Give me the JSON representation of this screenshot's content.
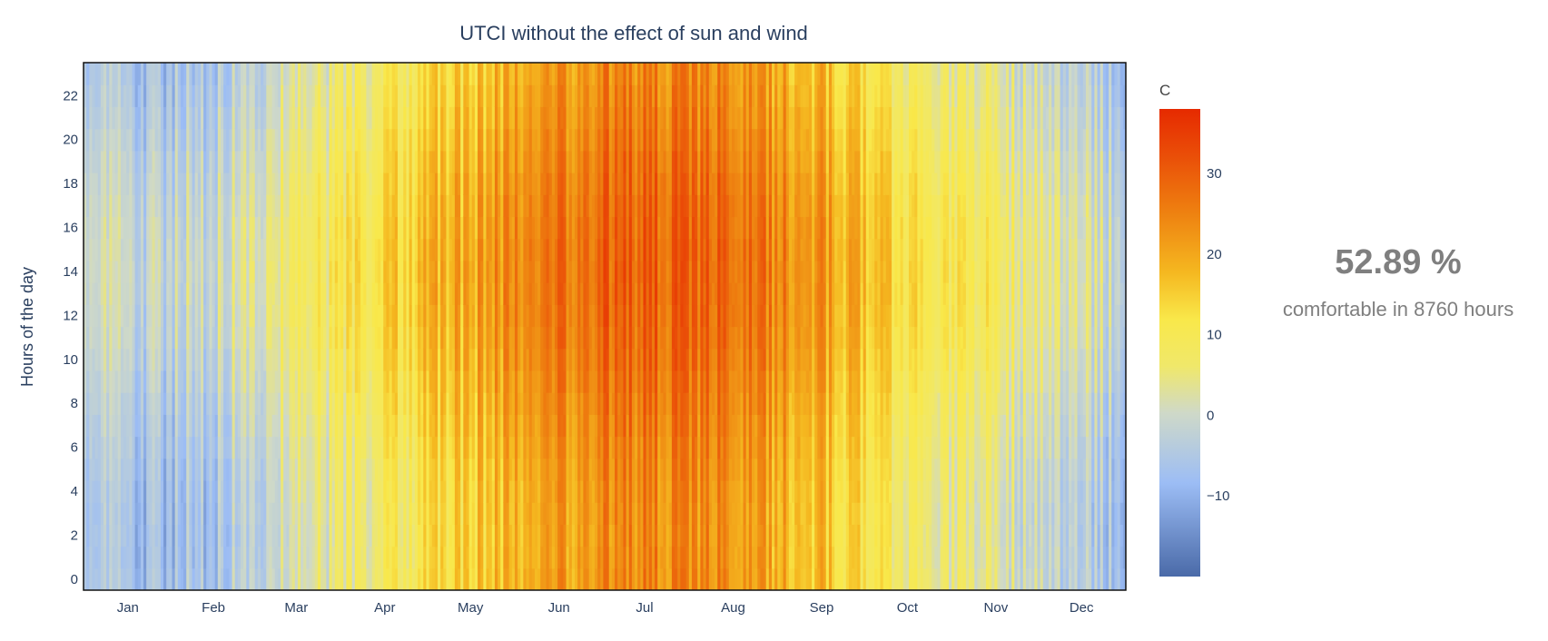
{
  "chart_data": {
    "type": "heatmap",
    "title": "UTCI  without the effect of sun and wind",
    "xlabel": "",
    "ylabel": "Hours of the day",
    "x_tick_labels": [
      "Jan",
      "Feb",
      "Mar",
      "Apr",
      "May",
      "Jun",
      "Jul",
      "Aug",
      "Sep",
      "Oct",
      "Nov",
      "Dec"
    ],
    "y_tick_labels": [
      "0",
      "2",
      "4",
      "6",
      "8",
      "10",
      "12",
      "14",
      "16",
      "18",
      "20",
      "22"
    ],
    "y_range": [
      0,
      23
    ],
    "days": 365,
    "hours": 24,
    "colorbar": {
      "title": "C",
      "range": [
        -20,
        38
      ],
      "ticks": [
        -10,
        0,
        10,
        20,
        30
      ],
      "tick_labels": [
        "−10",
        "0",
        "10",
        "20",
        "30"
      ],
      "colorscale": [
        [
          0.0,
          "#4a6aa8"
        ],
        [
          0.2,
          "#9cbdf5"
        ],
        [
          0.35,
          "#cfd9c8"
        ],
        [
          0.45,
          "#f0e86a"
        ],
        [
          0.55,
          "#f9e84a"
        ],
        [
          0.65,
          "#f5b820"
        ],
        [
          0.78,
          "#ee8010"
        ],
        [
          0.9,
          "#ea4e08"
        ],
        [
          1.0,
          "#e62a00"
        ]
      ]
    },
    "monthly_mean_utci_c": [
      -5,
      -3,
      4,
      10,
      17,
      24,
      27,
      25,
      19,
      10,
      5,
      -2
    ],
    "annotation": {
      "value": "52.89 %",
      "subtitle": "comfortable in 8760 hours"
    }
  }
}
